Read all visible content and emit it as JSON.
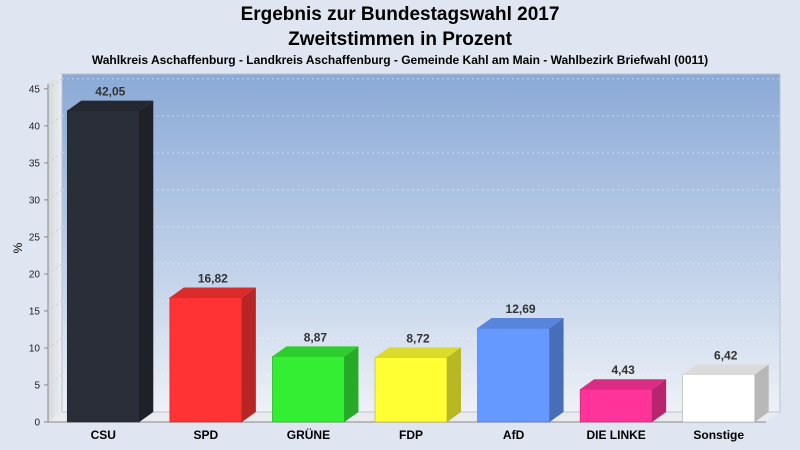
{
  "header": {
    "title_line1": "Ergebnis zur Bundestagswahl 2017",
    "title_line2": "Zweitstimmen in Prozent",
    "subtitle": "Wahlkreis Aschaffenburg - Landkreis Aschaffenburg - Gemeinde Kahl am Main - Wahlbezirk Briefwahl (0011)"
  },
  "chart_data": {
    "type": "bar",
    "title": "Ergebnis zur Bundestagswahl 2017",
    "subtitle": "Zweitstimmen in Prozent",
    "ylabel": "%",
    "xlabel": "",
    "ylim": [
      0,
      47
    ],
    "yticks": [
      0,
      5,
      10,
      15,
      20,
      25,
      30,
      35,
      40,
      45
    ],
    "grid": true,
    "categories": [
      "CSU",
      "SPD",
      "GRÜNE",
      "FDP",
      "AfD",
      "DIE LINKE",
      "Sonstige"
    ],
    "values": [
      42.05,
      16.82,
      8.87,
      8.72,
      12.69,
      4.43,
      6.42
    ],
    "value_labels": [
      "42,05",
      "16,82",
      "8,87",
      "8,72",
      "12,69",
      "4,43",
      "6,42"
    ],
    "colors": [
      "#2a2e38",
      "#ff3333",
      "#33ee33",
      "#ffff33",
      "#6699ff",
      "#ff3399",
      "#ffffff"
    ]
  }
}
